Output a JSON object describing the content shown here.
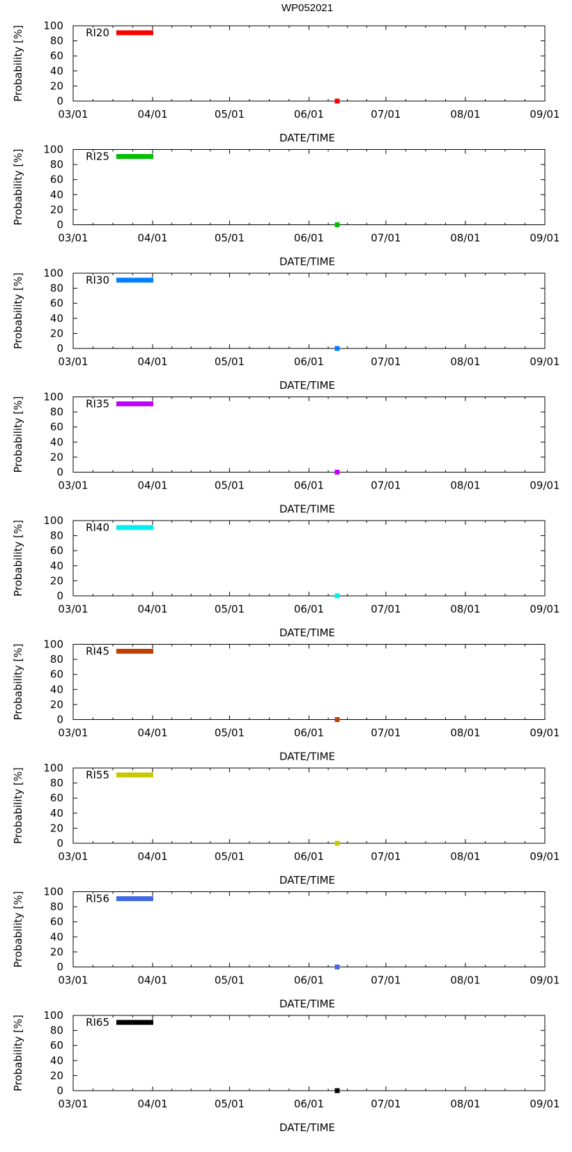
{
  "chart_data": {
    "type": "line",
    "title": "WP052021",
    "xlabel": "DATE/TIME",
    "ylabel": "Probability [%]",
    "x_ticks": [
      "03/01",
      "04/01",
      "05/01",
      "06/01",
      "07/01",
      "08/01",
      "09/01"
    ],
    "xlim": [
      "03/01",
      "09/01"
    ],
    "ylim": [
      0,
      100
    ],
    "y_ticks": [
      0,
      20,
      40,
      60,
      80,
      100
    ],
    "grid": false,
    "legend_position": "top-left",
    "panels": [
      {
        "series": "RI20",
        "color": "#ff0000",
        "points": [
          {
            "x": "06/12",
            "y": 0
          }
        ]
      },
      {
        "series": "RI25",
        "color": "#00c000",
        "points": [
          {
            "x": "06/12",
            "y": 0
          }
        ]
      },
      {
        "series": "RI30",
        "color": "#0080ff",
        "points": [
          {
            "x": "06/12",
            "y": 0
          }
        ]
      },
      {
        "series": "RI35",
        "color": "#c000ff",
        "points": [
          {
            "x": "06/12",
            "y": 0
          }
        ]
      },
      {
        "series": "RI40",
        "color": "#00eeee",
        "points": [
          {
            "x": "06/12",
            "y": 0
          }
        ]
      },
      {
        "series": "RI45",
        "color": "#c04000",
        "points": [
          {
            "x": "06/12",
            "y": 0
          }
        ]
      },
      {
        "series": "RI55",
        "color": "#c8c800",
        "points": [
          {
            "x": "06/12",
            "y": 0
          }
        ]
      },
      {
        "series": "RI56",
        "color": "#4169e1",
        "points": [
          {
            "x": "06/12",
            "y": 0
          }
        ]
      },
      {
        "series": "RI65",
        "color": "#000000",
        "points": [
          {
            "x": "06/12",
            "y": 0
          }
        ]
      }
    ]
  }
}
